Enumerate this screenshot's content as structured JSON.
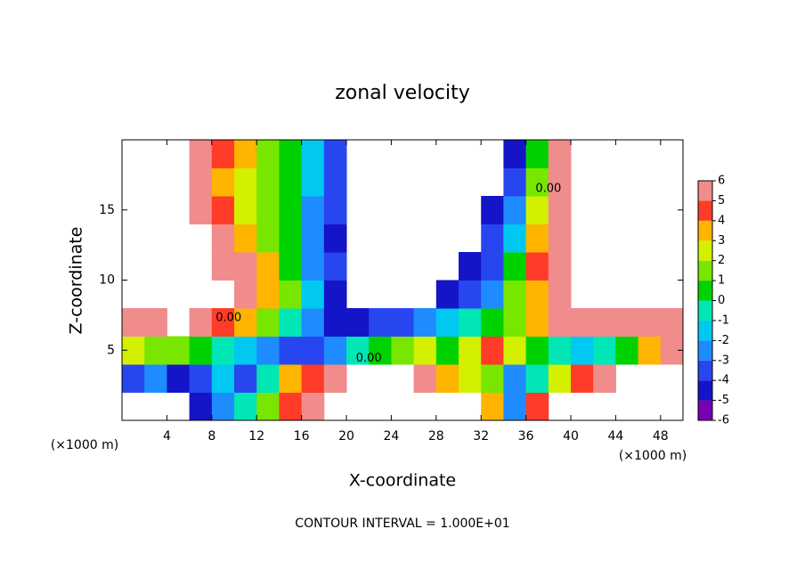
{
  "chart_data": {
    "type": "contour",
    "title": "zonal velocity",
    "xlabel": "X-coordinate",
    "ylabel": "Z-coordinate",
    "x_unit_left": "(×1000 m)",
    "x_unit_right": "(×1000 m)",
    "footnote": "CONTOUR INTERVAL = 1.000E+01",
    "xlim": [
      0,
      50
    ],
    "ylim": [
      0,
      20
    ],
    "xticks": [
      4,
      8,
      12,
      16,
      20,
      24,
      28,
      32,
      36,
      40,
      44,
      48
    ],
    "yticks": [
      5,
      10,
      15
    ],
    "x": [
      1,
      3,
      5,
      7,
      9,
      11,
      13,
      15,
      17,
      19,
      21,
      23,
      25,
      27,
      29,
      31,
      33,
      35,
      37,
      39,
      41,
      43,
      45,
      47,
      49
    ],
    "y": [
      1,
      3,
      5,
      7,
      9,
      11,
      13,
      15,
      17,
      19
    ],
    "z": [
      [
        null,
        null,
        null,
        -5,
        -3,
        -1,
        1,
        4,
        5,
        null,
        null,
        null,
        null,
        null,
        null,
        null,
        3,
        -3,
        4,
        null,
        null,
        null,
        null,
        null,
        null
      ],
      [
        -4,
        -3,
        -5,
        -4,
        -2,
        -4,
        -1,
        3,
        4,
        5,
        null,
        null,
        null,
        5,
        3,
        2,
        1,
        -3,
        -1,
        2,
        4,
        5,
        null,
        null,
        null
      ],
      [
        2,
        1,
        1,
        0,
        -1,
        -2,
        -3,
        -4,
        -4,
        -3,
        -1,
        0,
        1,
        2,
        0,
        2,
        4,
        2,
        0,
        -1,
        -2,
        -1,
        0,
        3,
        5
      ],
      [
        6,
        6,
        null,
        5,
        4,
        3,
        1,
        -1,
        -3,
        -5,
        -5,
        -4,
        -4,
        -3,
        -2,
        -1,
        0,
        1,
        3,
        5,
        6,
        6,
        6,
        5,
        6
      ],
      [
        null,
        null,
        null,
        null,
        null,
        5,
        3,
        1,
        -2,
        -5,
        null,
        null,
        null,
        null,
        -5,
        -4,
        -3,
        1,
        3,
        5,
        null,
        null,
        null,
        null,
        null
      ],
      [
        null,
        null,
        null,
        null,
        6,
        5,
        3,
        0,
        -3,
        -4,
        null,
        null,
        null,
        null,
        null,
        -5,
        -4,
        0,
        4,
        6,
        null,
        null,
        null,
        null,
        null
      ],
      [
        null,
        null,
        null,
        null,
        5,
        3,
        1,
        0,
        -3,
        -5,
        null,
        null,
        null,
        null,
        null,
        null,
        -4,
        -2,
        3,
        5,
        null,
        null,
        null,
        null,
        null
      ],
      [
        null,
        null,
        null,
        5,
        4,
        2,
        1,
        0,
        -3,
        -4,
        null,
        null,
        null,
        null,
        null,
        null,
        -5,
        -3,
        2,
        5,
        null,
        null,
        null,
        null,
        null
      ],
      [
        null,
        null,
        null,
        5,
        3,
        2,
        1,
        0,
        -2,
        -4,
        null,
        null,
        null,
        null,
        null,
        null,
        null,
        -4,
        1,
        5,
        null,
        null,
        null,
        null,
        null
      ],
      [
        null,
        null,
        null,
        5,
        4,
        3,
        1,
        0,
        -2,
        -4,
        null,
        null,
        null,
        null,
        null,
        null,
        null,
        -5,
        0,
        5,
        null,
        null,
        null,
        null,
        null
      ]
    ],
    "levels": [
      -6,
      -5,
      -4,
      -3,
      -2,
      -1,
      0,
      1,
      2,
      3,
      4,
      5,
      6
    ],
    "colors": [
      "#7800b4",
      "#1414c8",
      "#2846f0",
      "#1e8cff",
      "#00c8f0",
      "#00e6b4",
      "#00d200",
      "#78e600",
      "#d2f000",
      "#ffb400",
      "#ff3c28",
      "#f08c8c"
    ],
    "contour_labels": [
      {
        "text": "0.00",
        "x": 9.5,
        "y": 7.3
      },
      {
        "text": "0.00",
        "x": 22,
        "y": 4.4
      },
      {
        "text": "0.00",
        "x": 38,
        "y": 16.5
      }
    ]
  }
}
